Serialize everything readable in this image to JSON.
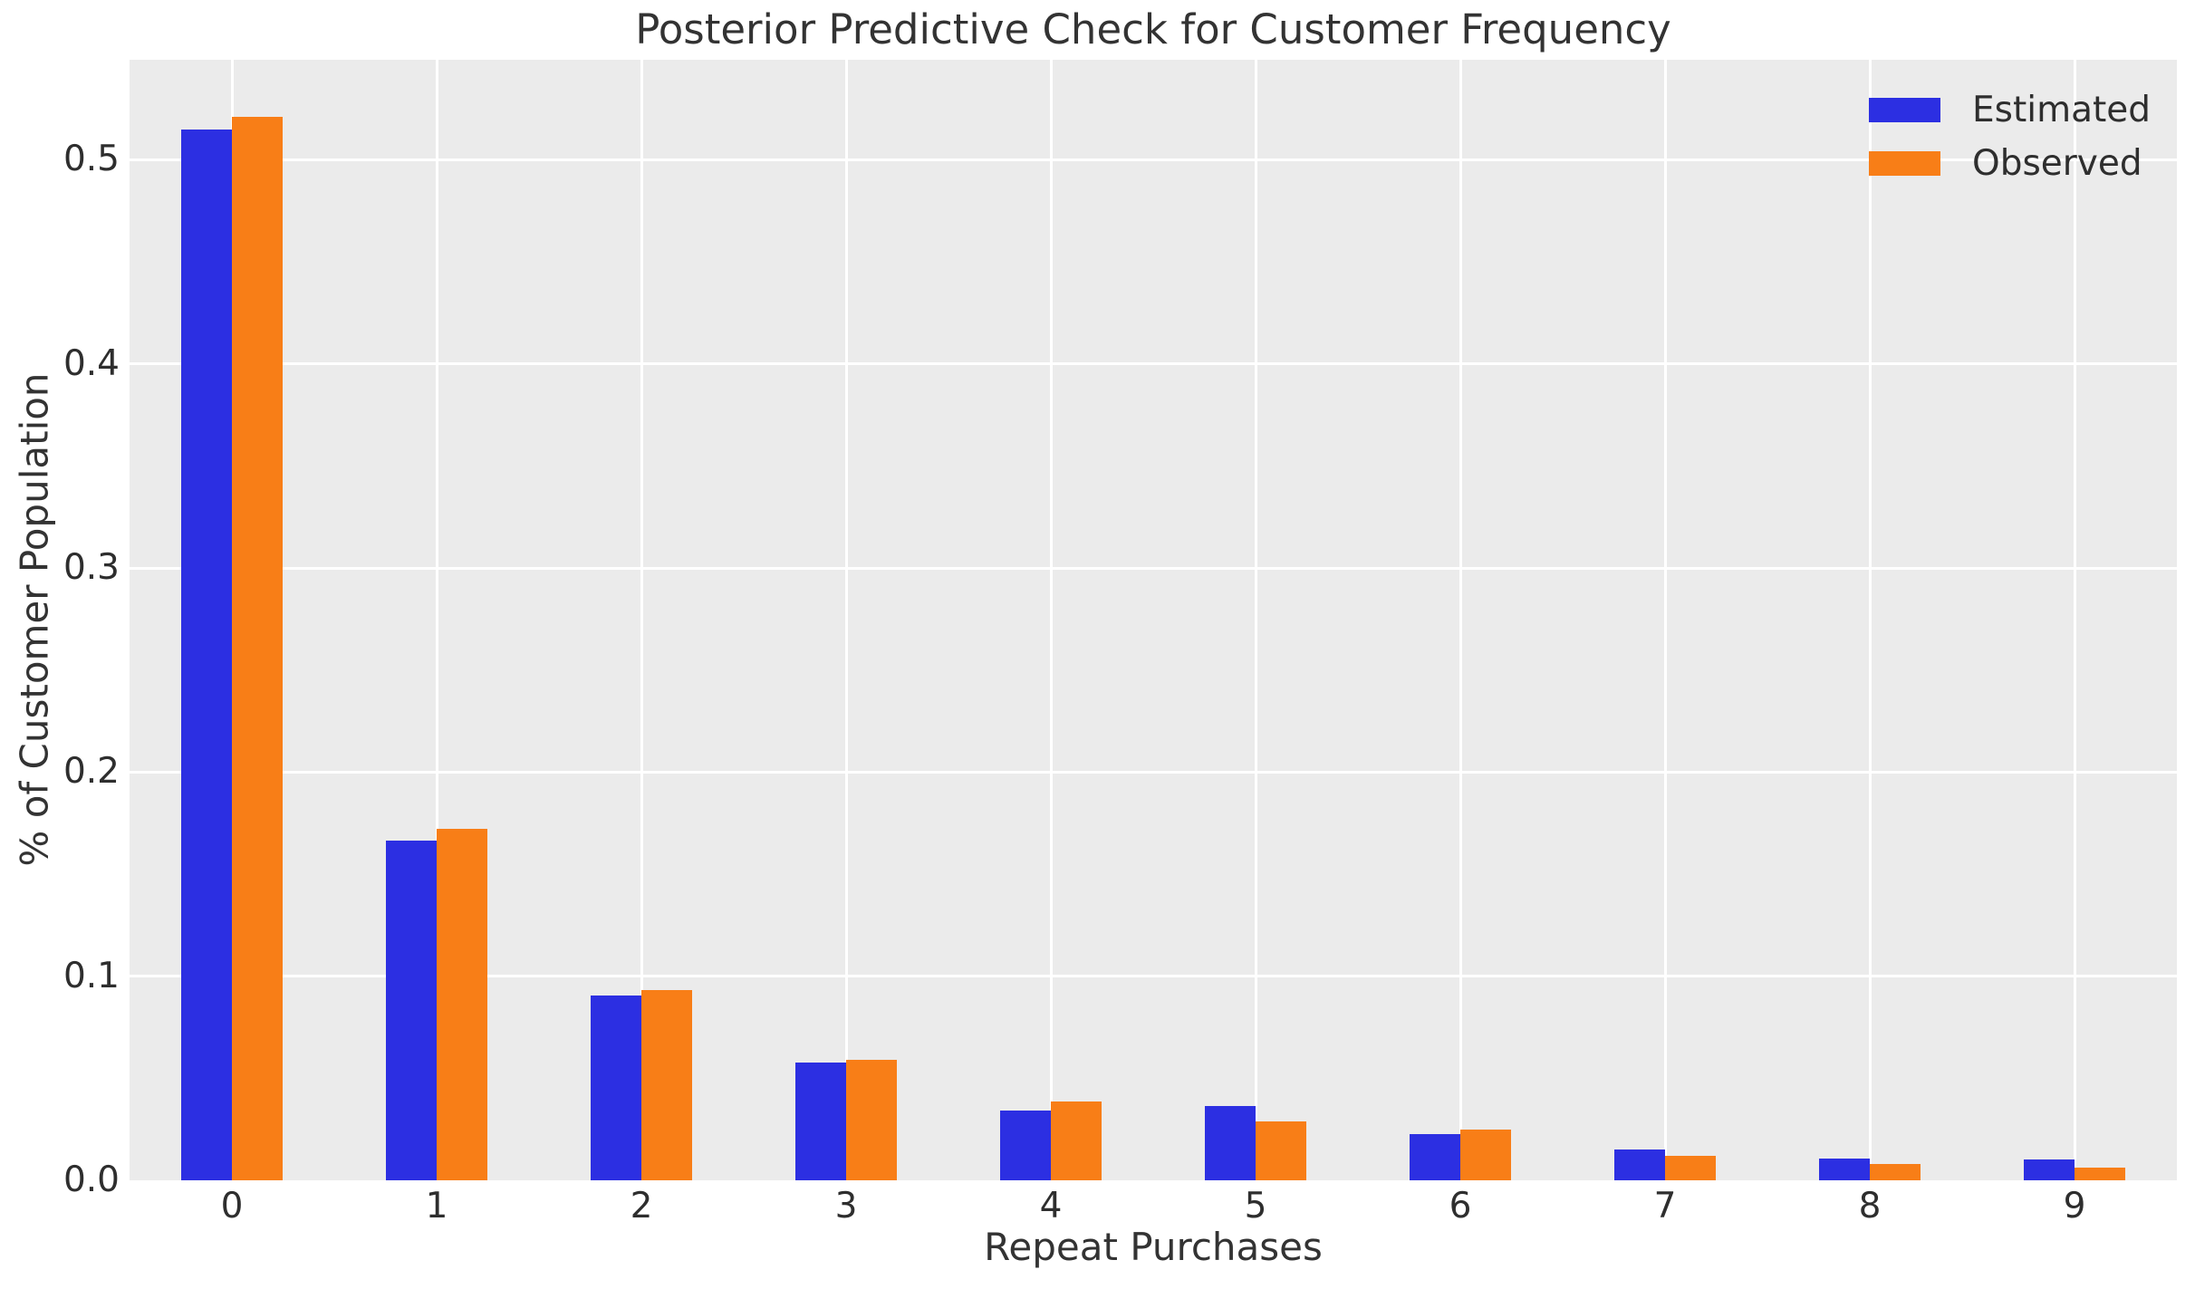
{
  "chart_data": {
    "type": "bar",
    "title": "Posterior Predictive Check for Customer Frequency",
    "xlabel": "Repeat Purchases",
    "ylabel": "% of Customer Population",
    "categories": [
      "0",
      "1",
      "2",
      "3",
      "4",
      "5",
      "6",
      "7",
      "8",
      "9"
    ],
    "series": [
      {
        "name": "Estimated",
        "color": "#2c2fe2",
        "values": [
          0.515,
          0.1665,
          0.0906,
          0.0577,
          0.0342,
          0.0364,
          0.0226,
          0.0151,
          0.0107,
          0.0102
        ]
      },
      {
        "name": "Observed",
        "color": "#f87e17",
        "values": [
          0.521,
          0.172,
          0.0933,
          0.059,
          0.0386,
          0.0289,
          0.0249,
          0.012,
          0.008,
          0.0062
        ]
      }
    ],
    "ylim": [
      0,
      0.549
    ],
    "yticks": {
      "values": [
        0,
        0.1,
        0.2,
        0.3,
        0.4,
        0.5
      ],
      "labels": [
        "0.0",
        "0.1",
        "0.2",
        "0.3",
        "0.4",
        "0.5"
      ]
    },
    "legend_position": "upper right",
    "grid": true,
    "plot_background": "#ebebeb",
    "grid_color": "#ffffff"
  }
}
